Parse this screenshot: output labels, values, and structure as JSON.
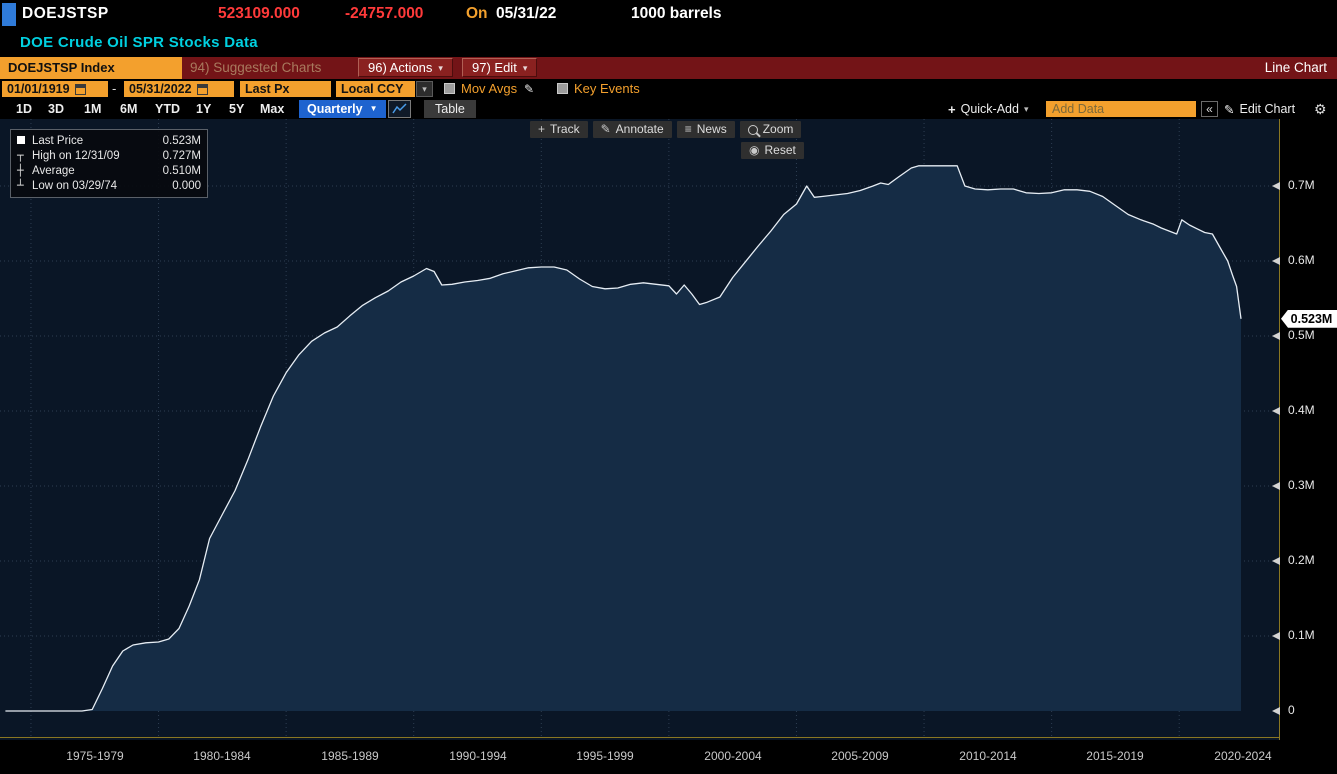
{
  "colors": {
    "amber": "#f3a02d",
    "red": "#ff3a3a",
    "cyan": "#00d0e0",
    "blue": "#1e63cf",
    "maroon": "#731417",
    "chartbg": "#0a1626",
    "fill": "#152c45",
    "line": "#e6edf4",
    "grid": "#2e3e52",
    "axis": "#8a7722"
  },
  "header": {
    "ticker": "DOEJSTSP",
    "last_price": "523109.000",
    "change": "-24757.000",
    "on_label": "On",
    "price_date": "05/31/22",
    "unit": "1000 barrels",
    "description": "DOE Crude Oil SPR Stocks Data"
  },
  "menu": {
    "security": "DOEJSTSP Index",
    "suggested_charts": "94) Suggested Charts",
    "actions": "96) Actions",
    "edit": "97) Edit",
    "chart_type": "Line Chart"
  },
  "toolbar": {
    "date_from": "01/01/1919",
    "date_separator": "-",
    "date_to": "05/31/2022",
    "price_type": "Last Px",
    "currency": "Local CCY",
    "mov_avgs": "Mov Avgs",
    "key_events": "Key Events"
  },
  "periods": [
    "1D",
    "3D",
    "1M",
    "6M",
    "YTD",
    "1Y",
    "5Y",
    "Max"
  ],
  "frequency": "Quarterly",
  "table_label": "Table",
  "right_tools": {
    "quick_add": "Quick-Add",
    "add_data_placeholder": "Add Data",
    "edit_chart": "Edit Chart"
  },
  "chart_tools": {
    "track": "Track",
    "annotate": "Annotate",
    "news": "News",
    "zoom": "Zoom",
    "reset": "Reset"
  },
  "legend": {
    "rows": [
      {
        "label": "Last Price",
        "value": "0.523M"
      },
      {
        "label": "High on 12/31/09",
        "value": "0.727M"
      },
      {
        "label": "Average",
        "value": "0.510M"
      },
      {
        "label": "Low on 03/29/74",
        "value": "0.000"
      }
    ]
  },
  "axis": {
    "last_tag": "0.523M"
  },
  "icons": {
    "caret_down": "▾",
    "caret_down_solid": "▼",
    "pencil": "✎",
    "gear": "⚙",
    "plus": "+",
    "news": "≡",
    "reset": "◉",
    "collapse": "«",
    "track": "+",
    "high_marker": "┬",
    "avg_marker": "┼",
    "low_marker": "┴"
  },
  "chart_data": {
    "type": "area",
    "title": "DOE Crude Oil SPR Stocks Data",
    "unit": "1000 barrels (axis values in millions of thousand barrels)",
    "xlabel": "",
    "ylabel": "",
    "ylim": [
      0,
      0.75
    ],
    "x_start": 1974.1,
    "x_end": 2023.95,
    "grid_years": [
      1975,
      1980,
      1985,
      1990,
      1995,
      2000,
      2005,
      2010,
      2015,
      2020
    ],
    "y_ticks": [
      {
        "v": 0.7,
        "label": "0.7M"
      },
      {
        "v": 0.6,
        "label": "0.6M"
      },
      {
        "v": 0.5,
        "label": "0.5M"
      },
      {
        "v": 0.4,
        "label": "0.4M"
      },
      {
        "v": 0.3,
        "label": "0.3M"
      },
      {
        "v": 0.2,
        "label": "0.2M"
      },
      {
        "v": 0.1,
        "label": "0.1M"
      },
      {
        "v": 0,
        "label": "0"
      }
    ],
    "x_bands": [
      {
        "center": 1977.5,
        "label": "1975-1979"
      },
      {
        "center": 1982.5,
        "label": "1980-1984"
      },
      {
        "center": 1987.5,
        "label": "1985-1989"
      },
      {
        "center": 1992.5,
        "label": "1990-1994"
      },
      {
        "center": 1997.5,
        "label": "1995-1999"
      },
      {
        "center": 2002.5,
        "label": "2000-2004"
      },
      {
        "center": 2007.5,
        "label": "2005-2009"
      },
      {
        "center": 2012.5,
        "label": "2010-2014"
      },
      {
        "center": 2017.5,
        "label": "2015-2019"
      },
      {
        "center": 2022.5,
        "label": "2020-2024"
      }
    ],
    "last": {
      "date": "05/31/22",
      "value": 0.523
    },
    "high": {
      "date": "12/31/09",
      "value": 0.727
    },
    "average": 0.51,
    "low": {
      "date": "03/29/74",
      "value": 0.0
    },
    "points": [
      [
        1974,
        0
      ],
      [
        1975,
        0
      ],
      [
        1976,
        0
      ],
      [
        1977,
        0
      ],
      [
        1977.4,
        0.002
      ],
      [
        1977.8,
        0.03
      ],
      [
        1978.2,
        0.06
      ],
      [
        1978.6,
        0.08
      ],
      [
        1979,
        0.088
      ],
      [
        1979.5,
        0.091
      ],
      [
        1980,
        0.092
      ],
      [
        1980.4,
        0.096
      ],
      [
        1980.8,
        0.11
      ],
      [
        1981.2,
        0.14
      ],
      [
        1981.6,
        0.175
      ],
      [
        1982,
        0.23
      ],
      [
        1982.5,
        0.262
      ],
      [
        1983,
        0.294
      ],
      [
        1983.5,
        0.335
      ],
      [
        1984,
        0.379
      ],
      [
        1984.5,
        0.42
      ],
      [
        1985,
        0.451
      ],
      [
        1985.5,
        0.475
      ],
      [
        1986,
        0.493
      ],
      [
        1986.5,
        0.504
      ],
      [
        1987,
        0.512
      ],
      [
        1987.5,
        0.527
      ],
      [
        1988,
        0.541
      ],
      [
        1988.5,
        0.551
      ],
      [
        1989,
        0.56
      ],
      [
        1989.5,
        0.572
      ],
      [
        1990,
        0.58
      ],
      [
        1990.5,
        0.59
      ],
      [
        1990.8,
        0.586
      ],
      [
        1991.1,
        0.568
      ],
      [
        1991.5,
        0.569
      ],
      [
        1992,
        0.572
      ],
      [
        1992.5,
        0.574
      ],
      [
        1993,
        0.577
      ],
      [
        1993.5,
        0.583
      ],
      [
        1994,
        0.587
      ],
      [
        1994.5,
        0.591
      ],
      [
        1995,
        0.592
      ],
      [
        1995.5,
        0.592
      ],
      [
        1996,
        0.588
      ],
      [
        1996.5,
        0.576
      ],
      [
        1997,
        0.566
      ],
      [
        1997.5,
        0.563
      ],
      [
        1998,
        0.564
      ],
      [
        1998.5,
        0.569
      ],
      [
        1999,
        0.571
      ],
      [
        1999.5,
        0.569
      ],
      [
        2000,
        0.567
      ],
      [
        2000.3,
        0.556
      ],
      [
        2000.6,
        0.568
      ],
      [
        2000.9,
        0.556
      ],
      [
        2001.2,
        0.542
      ],
      [
        2001.5,
        0.545
      ],
      [
        2002,
        0.552
      ],
      [
        2002.5,
        0.578
      ],
      [
        2003,
        0.599
      ],
      [
        2003.5,
        0.62
      ],
      [
        2004,
        0.64
      ],
      [
        2004.5,
        0.662
      ],
      [
        2005,
        0.676
      ],
      [
        2005.4,
        0.7
      ],
      [
        2005.7,
        0.685
      ],
      [
        2006,
        0.686
      ],
      [
        2006.5,
        0.688
      ],
      [
        2007,
        0.69
      ],
      [
        2007.5,
        0.694
      ],
      [
        2008,
        0.7
      ],
      [
        2008.3,
        0.704
      ],
      [
        2008.6,
        0.702
      ],
      [
        2009,
        0.712
      ],
      [
        2009.5,
        0.724
      ],
      [
        2009.8,
        0.727
      ],
      [
        2010.5,
        0.727
      ],
      [
        2011.3,
        0.727
      ],
      [
        2011.6,
        0.7
      ],
      [
        2012,
        0.696
      ],
      [
        2012.5,
        0.695
      ],
      [
        2013,
        0.696
      ],
      [
        2013.5,
        0.696
      ],
      [
        2014,
        0.691
      ],
      [
        2014.5,
        0.69
      ],
      [
        2015,
        0.691
      ],
      [
        2015.5,
        0.695
      ],
      [
        2016,
        0.695
      ],
      [
        2016.5,
        0.693
      ],
      [
        2017,
        0.686
      ],
      [
        2017.5,
        0.674
      ],
      [
        2018,
        0.662
      ],
      [
        2018.5,
        0.655
      ],
      [
        2019,
        0.649
      ],
      [
        2019.3,
        0.644
      ],
      [
        2019.6,
        0.64
      ],
      [
        2019.9,
        0.636
      ],
      [
        2020.1,
        0.655
      ],
      [
        2020.4,
        0.648
      ],
      [
        2020.7,
        0.643
      ],
      [
        2021,
        0.638
      ],
      [
        2021.3,
        0.636
      ],
      [
        2021.6,
        0.618
      ],
      [
        2021.9,
        0.6
      ],
      [
        2022.1,
        0.58
      ],
      [
        2022.25,
        0.566
      ],
      [
        2022.42,
        0.523
      ]
    ]
  }
}
